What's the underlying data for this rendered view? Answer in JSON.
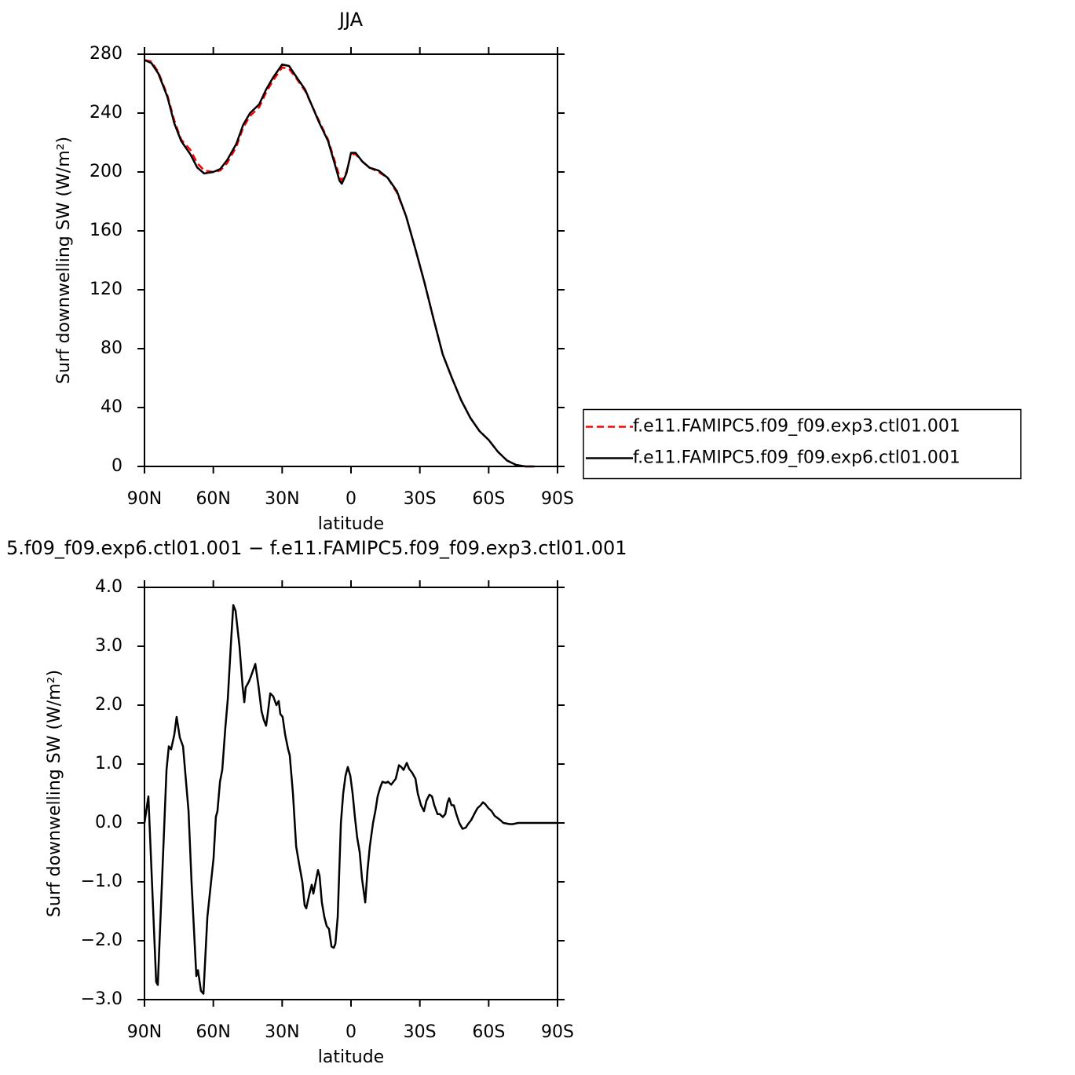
{
  "chart_data": [
    {
      "type": "line",
      "title": "JJA",
      "xlabel": "latitude",
      "ylabel": "Surf downwelling SW (W/m²)",
      "xlim": [
        90,
        -90
      ],
      "xticks": [
        {
          "value": 90,
          "label": "90N"
        },
        {
          "value": 60,
          "label": "60N"
        },
        {
          "value": 30,
          "label": "30N"
        },
        0,
        {
          "value": -30,
          "label": "30S"
        },
        {
          "value": -60,
          "label": "60S"
        },
        {
          "value": -90,
          "label": "90S"
        }
      ],
      "ylim": [
        0,
        280
      ],
      "yticks": [
        0,
        40,
        80,
        120,
        160,
        200,
        240,
        280
      ],
      "legend": "right",
      "x": [
        90,
        87,
        84,
        80,
        77,
        74,
        70,
        67,
        64,
        60,
        57,
        54,
        50,
        47,
        44,
        40,
        37,
        34,
        30,
        27,
        24,
        20,
        17,
        14,
        10,
        7,
        5,
        4,
        2,
        0,
        -2,
        -5,
        -8,
        -12,
        -16,
        -20,
        -24,
        -28,
        -32,
        -36,
        -40,
        -44,
        -48,
        -52,
        -56,
        -60,
        -64,
        -68,
        -72,
        -76,
        -80
      ],
      "series": [
        {
          "name": "f.e11.FAMIPC5.f09_f09.exp3.ctl01.001",
          "color": "#ff0000",
          "linestyle": "dashed",
          "values": [
            276,
            275,
            268,
            252,
            235,
            222,
            215,
            206,
            201,
            200,
            201,
            206,
            217,
            230,
            238,
            244,
            254,
            262,
            271,
            270,
            264,
            255,
            245,
            235,
            222,
            207,
            197,
            194,
            200,
            212,
            212,
            207,
            203,
            200,
            196,
            186,
            170,
            148,
            125,
            100,
            76,
            60,
            45,
            33,
            24,
            18,
            10,
            4,
            1,
            0,
            0
          ]
        },
        {
          "name": "f.e11.FAMIPC5.f09_f09.exp6.ctl01.001",
          "color": "#000000",
          "linestyle": "solid",
          "values": [
            276,
            274,
            267,
            251,
            233,
            221,
            212,
            203,
            199,
            200,
            202,
            208,
            219,
            232,
            240,
            246,
            256,
            264,
            273,
            272,
            265,
            256,
            245,
            234,
            221,
            205,
            194,
            192,
            199,
            213,
            213,
            207,
            203,
            201,
            196,
            187,
            170,
            148,
            125,
            100,
            76,
            60,
            45,
            33,
            24,
            18,
            10,
            4,
            1,
            0,
            0
          ]
        }
      ]
    },
    {
      "type": "line",
      "title": "5.f09_f09.exp6.ctl01.001 − f.e11.FAMIPC5.f09_f09.exp3.ctl01.001",
      "xlabel": "latitude",
      "ylabel": "Surf downwelling SW (W/m²)",
      "xlim": [
        90,
        -90
      ],
      "xticks": [
        {
          "value": 90,
          "label": "90N"
        },
        {
          "value": 60,
          "label": "60N"
        },
        {
          "value": 30,
          "label": "30N"
        },
        0,
        {
          "value": -30,
          "label": "30S"
        },
        {
          "value": -60,
          "label": "60S"
        },
        {
          "value": -90,
          "label": "90S"
        }
      ],
      "ylim": [
        -3,
        4
      ],
      "yticks": [
        {
          "value": -3,
          "label": "−3.0"
        },
        {
          "value": -2,
          "label": "−2.0"
        },
        {
          "value": -1,
          "label": "−1.0"
        },
        {
          "value": 0,
          "label": "0.0"
        },
        {
          "value": 1,
          "label": "1.0"
        },
        {
          "value": 2,
          "label": "2.0"
        },
        {
          "value": 3,
          "label": "3.0"
        },
        {
          "value": 4,
          "label": "4.0"
        }
      ],
      "x": [
        90,
        88.3,
        84.9,
        84.2,
        80.4,
        79.4,
        78.4,
        77.0,
        76.0,
        74.6,
        73.2,
        70.8,
        69.5,
        67.4,
        66.7,
        65.4,
        64.3,
        62.6,
        59.9,
        58.9,
        58.2,
        57.1,
        56.1,
        54.8,
        53.7,
        52.4,
        51.3,
        50.3,
        48.6,
        47.2,
        46.5,
        45.9,
        44.5,
        43.5,
        41.7,
        40.4,
        39.0,
        38.0,
        37.0,
        36.3,
        35.2,
        33.9,
        32.5,
        31.5,
        30.8,
        29.8,
        28.7,
        27.4,
        26.7,
        25.3,
        23.9,
        22.6,
        21.2,
        20.2,
        19.5,
        18.1,
        17.1,
        16.4,
        15.4,
        14.4,
        13.7,
        12.7,
        11.6,
        10.6,
        9.6,
        8.5,
        7.5,
        6.8,
        5.8,
        5.1,
        4.4,
        3.4,
        2.4,
        1.4,
        0.3,
        -0.7,
        -1.7,
        -2.7,
        -3.8,
        -4.8,
        -6.2,
        -7.2,
        -8.2,
        -9.6,
        -10.6,
        -11.6,
        -12.7,
        -13.7,
        -15.1,
        -16.1,
        -17.5,
        -18.5,
        -19.5,
        -20.9,
        -21.9,
        -22.9,
        -24.3,
        -25.3,
        -26.7,
        -28.1,
        -29.1,
        -30.5,
        -31.8,
        -32.9,
        -34.2,
        -35.3,
        -36.3,
        -37.7,
        -38.7,
        -40.0,
        -41.1,
        -42.1,
        -42.8,
        -43.8,
        -44.8,
        -45.9,
        -47.2,
        -48.6,
        -50.0,
        -51.0,
        -52.4,
        -53.7,
        -55.1,
        -56.5,
        -57.5,
        -58.5,
        -59.9,
        -61.3,
        -62.6,
        -64.0,
        -65.0,
        -66.4,
        -67.8,
        -69.1,
        -70.5,
        -72.9,
        -76.3,
        -90
      ],
      "series": [
        {
          "color": "#000000",
          "linestyle": "solid",
          "values": [
            0.0,
            0.45,
            -2.7,
            -2.75,
            0.9,
            1.3,
            1.25,
            1.5,
            1.8,
            1.45,
            1.3,
            0.2,
            -1.0,
            -2.6,
            -2.5,
            -2.85,
            -2.9,
            -1.6,
            -0.6,
            0.1,
            0.2,
            0.7,
            0.9,
            1.6,
            2.1,
            3.0,
            3.7,
            3.6,
            3.0,
            2.3,
            2.05,
            2.3,
            2.4,
            2.5,
            2.7,
            2.35,
            1.9,
            1.75,
            1.65,
            1.85,
            2.2,
            2.15,
            2.0,
            2.07,
            1.85,
            1.8,
            1.5,
            1.25,
            1.15,
            0.5,
            -0.4,
            -0.7,
            -1.0,
            -1.4,
            -1.45,
            -1.2,
            -1.05,
            -1.2,
            -1.0,
            -0.8,
            -0.9,
            -1.35,
            -1.6,
            -1.75,
            -1.8,
            -2.1,
            -2.12,
            -2.05,
            -1.6,
            -0.8,
            0.0,
            0.5,
            0.8,
            0.95,
            0.8,
            0.5,
            0.1,
            -0.25,
            -0.5,
            -0.95,
            -1.35,
            -0.8,
            -0.4,
            0.0,
            0.2,
            0.45,
            0.6,
            0.7,
            0.68,
            0.7,
            0.65,
            0.7,
            0.75,
            0.98,
            0.95,
            0.9,
            1.02,
            0.92,
            0.85,
            0.75,
            0.5,
            0.3,
            0.2,
            0.38,
            0.48,
            0.45,
            0.3,
            0.15,
            0.15,
            0.1,
            0.15,
            0.35,
            0.42,
            0.3,
            0.3,
            0.15,
            0.0,
            -0.1,
            -0.08,
            -0.02,
            0.05,
            0.15,
            0.25,
            0.3,
            0.35,
            0.32,
            0.25,
            0.2,
            0.12,
            0.08,
            0.05,
            0.0,
            -0.01,
            -0.02,
            -0.02,
            0.0,
            0.0,
            0.0
          ]
        }
      ]
    }
  ]
}
